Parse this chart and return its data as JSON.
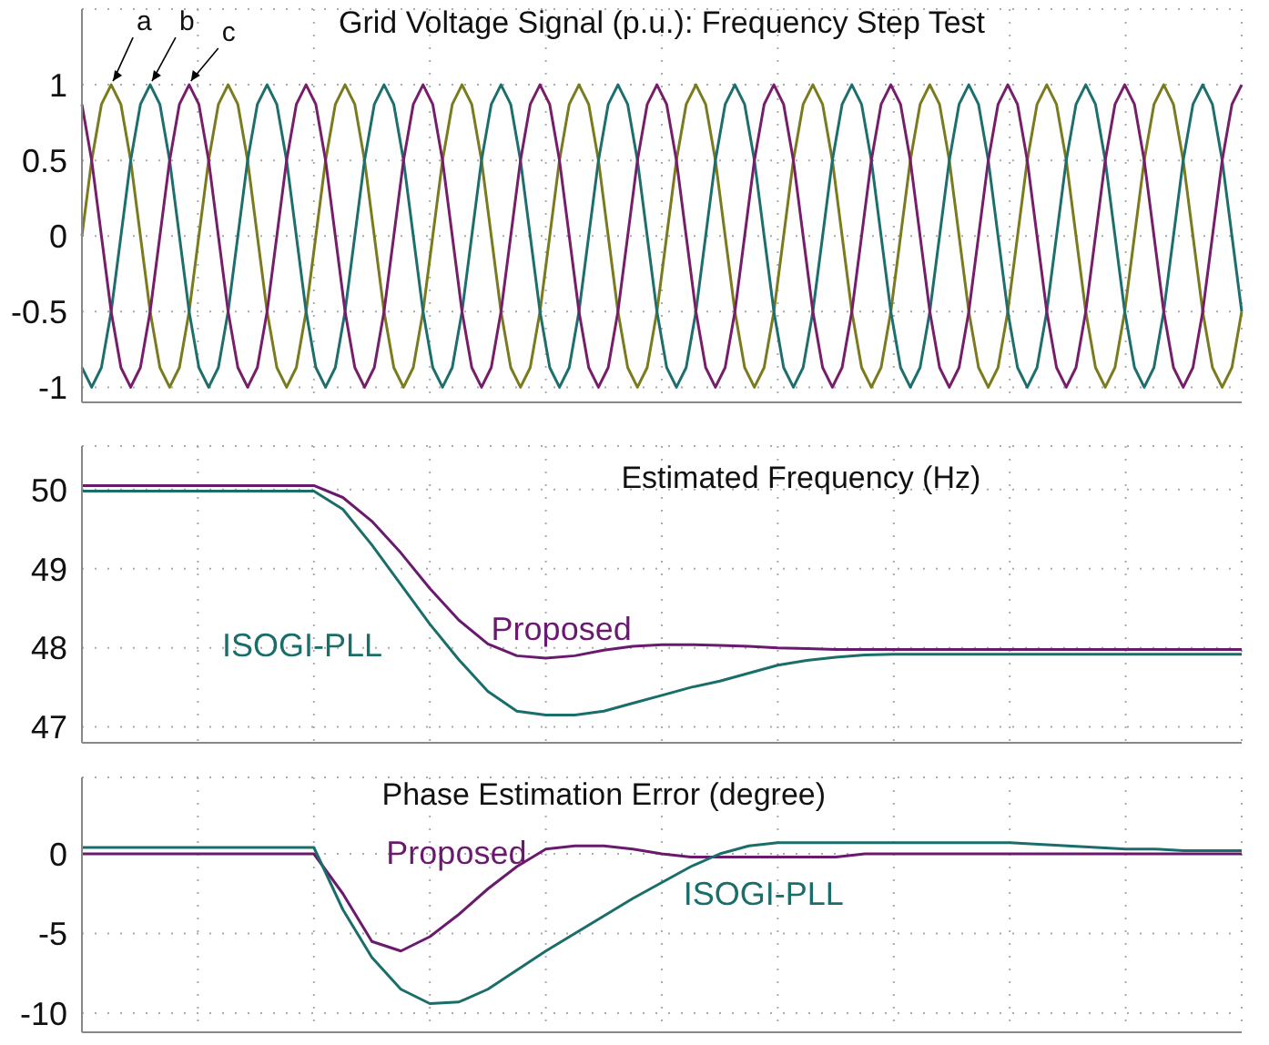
{
  "chart_data": [
    {
      "type": "line",
      "title": "Grid Voltage Signal (p.u.): Frequency Step Test",
      "categories": [
        null,
        null,
        null,
        null,
        null,
        null,
        null,
        null,
        null,
        null,
        null,
        null,
        null,
        null,
        null,
        null,
        null,
        null,
        null,
        null,
        null,
        null,
        null,
        null,
        null,
        null,
        null,
        null,
        null,
        null,
        null,
        null,
        null,
        null,
        null,
        null,
        null,
        null,
        null,
        null,
        null,
        null,
        null,
        null,
        null,
        null,
        null,
        null,
        null,
        null,
        null,
        null,
        null,
        null,
        null,
        null,
        null,
        null,
        null,
        null,
        null,
        null,
        null,
        null,
        null,
        null,
        null,
        null,
        null,
        null,
        null,
        null,
        null,
        null,
        null,
        null,
        null,
        null,
        null,
        null,
        null,
        null,
        null,
        null,
        null,
        null,
        null,
        null,
        null,
        null,
        null,
        null,
        null,
        null,
        null,
        null,
        null,
        null,
        null,
        null,
        null,
        null,
        null,
        null,
        null,
        null,
        null,
        null,
        null,
        null,
        null,
        null,
        null,
        null,
        null,
        null,
        null,
        null,
        null,
        null
      ],
      "ylim": [
        -1.1,
        1.5
      ],
      "yticks": [
        -1,
        -0.5,
        0,
        0.5,
        1
      ],
      "grid": true,
      "legend": false,
      "marker": "none",
      "line_style": "solid",
      "series": [
        {
          "name": "a",
          "color": "#7a7a1e",
          "values": [
            0,
            0.5,
            0.87,
            1,
            0.87,
            0.5,
            0,
            -0.5,
            -0.87,
            -1,
            -0.87,
            -0.5,
            0,
            0.5,
            0.87,
            1,
            0.87,
            0.5,
            0,
            -0.5,
            -0.87,
            -1,
            -0.87,
            -0.5,
            0,
            0.5,
            0.87,
            1,
            0.87,
            0.5,
            0,
            -0.5,
            -0.87,
            -1,
            -0.87,
            -0.5,
            0,
            0.5,
            0.87,
            1,
            0.87,
            0.5,
            0,
            -0.5,
            -0.87,
            -1,
            -0.87,
            -0.5,
            0,
            0.5,
            0.87,
            1,
            0.87,
            0.5,
            0,
            -0.5,
            -0.87,
            -1,
            -0.87,
            -0.5,
            0,
            0.5,
            0.87,
            1,
            0.87,
            0.5,
            0,
            -0.5,
            -0.87,
            -1,
            -0.87,
            -0.5,
            0,
            0.5,
            0.87,
            1,
            0.87,
            0.5,
            0,
            -0.5,
            -0.87,
            -1,
            -0.87,
            -0.5,
            0,
            0.5,
            0.87,
            1,
            0.87,
            0.5,
            0,
            -0.5,
            -0.87,
            -1,
            -0.87,
            -0.5,
            0,
            0.5,
            0.87,
            1,
            0.87,
            0.5,
            0,
            -0.5,
            -0.87,
            -1,
            -0.87,
            -0.5,
            0,
            0.5,
            0.87,
            1,
            0.87,
            0.5,
            0,
            -0.5,
            -0.87,
            -1,
            -0.87,
            -0.5
          ]
        },
        {
          "name": "b",
          "color": "#1e6e6e",
          "values": [
            -0.87,
            -1,
            -0.87,
            -0.5,
            0,
            0.5,
            0.87,
            1,
            0.87,
            0.5,
            0,
            -0.5,
            -0.87,
            -1,
            -0.87,
            -0.5,
            0,
            0.5,
            0.87,
            1,
            0.87,
            0.5,
            0,
            -0.5,
            -0.87,
            -1,
            -0.87,
            -0.5,
            0,
            0.5,
            0.87,
            1,
            0.87,
            0.5,
            0,
            -0.5,
            -0.87,
            -1,
            -0.87,
            -0.5,
            0,
            0.5,
            0.87,
            1,
            0.87,
            0.5,
            0,
            -0.5,
            -0.87,
            -1,
            -0.87,
            -0.5,
            0,
            0.5,
            0.87,
            1,
            0.87,
            0.5,
            0,
            -0.5,
            -0.87,
            -1,
            -0.87,
            -0.5,
            0,
            0.5,
            0.87,
            1,
            0.87,
            0.5,
            0,
            -0.5,
            -0.87,
            -1,
            -0.87,
            -0.5,
            0,
            0.5,
            0.87,
            1,
            0.87,
            0.5,
            0,
            -0.5,
            -0.87,
            -1,
            -0.87,
            -0.5,
            0,
            0.5,
            0.87,
            1,
            0.87,
            0.5,
            0,
            -0.5,
            -0.87,
            -1,
            -0.87,
            -0.5,
            0,
            0.5,
            0.87,
            1,
            0.87,
            0.5,
            0,
            -0.5,
            -0.87,
            -1,
            -0.87,
            -0.5,
            0,
            0.5,
            0.87,
            1,
            0.87,
            0.5,
            0,
            -0.5
          ]
        },
        {
          "name": "c",
          "color": "#761e6a",
          "values": [
            0.87,
            0.5,
            0,
            -0.5,
            -0.87,
            -1,
            -0.87,
            -0.5,
            0,
            0.5,
            0.87,
            1,
            0.87,
            0.5,
            0,
            -0.5,
            -0.87,
            -1,
            -0.87,
            -0.5,
            0,
            0.5,
            0.87,
            1,
            0.87,
            0.5,
            0,
            -0.5,
            -0.87,
            -1,
            -0.87,
            -0.5,
            0,
            0.5,
            0.87,
            1,
            0.87,
            0.5,
            0,
            -0.5,
            -0.87,
            -1,
            -0.87,
            -0.5,
            0,
            0.5,
            0.87,
            1,
            0.87,
            0.5,
            0,
            -0.5,
            -0.87,
            -1,
            -0.87,
            -0.5,
            0,
            0.5,
            0.87,
            1,
            0.87,
            0.5,
            0,
            -0.5,
            -0.87,
            -1,
            -0.87,
            -0.5,
            0,
            0.5,
            0.87,
            1,
            0.87,
            0.5,
            0,
            -0.5,
            -0.87,
            -1,
            -0.87,
            -0.5,
            0,
            0.5,
            0.87,
            1,
            0.87,
            0.5,
            0,
            -0.5,
            -0.87,
            -1,
            -0.87,
            -0.5,
            0,
            0.5,
            0.87,
            1,
            0.87,
            0.5,
            0,
            -0.5,
            -0.87,
            -1,
            -0.87,
            -0.5,
            0,
            0.5,
            0.87,
            1,
            0.87,
            0.5,
            0,
            -0.5,
            -0.87,
            -1,
            -0.87,
            -0.5,
            0,
            0.5,
            0.87,
            1
          ]
        }
      ]
    },
    {
      "type": "line",
      "title": "Estimated Frequency (Hz)",
      "categories": [
        null,
        null,
        null,
        null,
        null,
        null,
        null,
        null,
        null,
        null,
        null,
        null,
        null,
        null,
        null,
        null,
        null,
        null,
        null,
        null,
        null,
        null,
        null,
        null,
        null,
        null,
        null,
        null,
        null,
        null,
        null,
        null,
        null,
        null,
        null,
        null,
        null,
        null,
        null,
        null,
        null
      ],
      "ylim": [
        46.8,
        50.55
      ],
      "yticks": [
        47,
        48,
        49,
        50
      ],
      "grid": true,
      "legend": false,
      "marker": "none",
      "line_style": "solid",
      "series": [
        {
          "name": "Proposed",
          "color": "#6a1a6e",
          "values": [
            50.05,
            50.05,
            50.05,
            50.05,
            50.05,
            50.05,
            50.05,
            50.05,
            50.05,
            49.9,
            49.6,
            49.2,
            48.75,
            48.35,
            48.05,
            47.9,
            47.87,
            47.9,
            47.97,
            48.02,
            48.04,
            48.04,
            48.03,
            48.02,
            48.0,
            47.99,
            47.98,
            47.98,
            47.98,
            47.98,
            47.98,
            47.98,
            47.98,
            47.98,
            47.98,
            47.98,
            47.98,
            47.98,
            47.98,
            47.98,
            47.98
          ]
        },
        {
          "name": "ISOGI-PLL",
          "color": "#1a6e6a",
          "values": [
            49.98,
            49.98,
            49.98,
            49.98,
            49.98,
            49.98,
            49.98,
            49.98,
            49.98,
            49.75,
            49.3,
            48.8,
            48.3,
            47.85,
            47.45,
            47.2,
            47.15,
            47.15,
            47.2,
            47.3,
            47.4,
            47.5,
            47.58,
            47.68,
            47.78,
            47.84,
            47.88,
            47.91,
            47.92,
            47.92,
            47.92,
            47.92,
            47.92,
            47.92,
            47.92,
            47.92,
            47.92,
            47.92,
            47.92,
            47.92,
            47.92
          ]
        }
      ]
    },
    {
      "type": "line",
      "title": "Phase Estimation Error (degree)",
      "categories": [
        null,
        null,
        null,
        null,
        null,
        null,
        null,
        null,
        null,
        null,
        null,
        null,
        null,
        null,
        null,
        null,
        null,
        null,
        null,
        null,
        null,
        null,
        null,
        null,
        null,
        null,
        null,
        null,
        null,
        null,
        null,
        null,
        null,
        null,
        null,
        null,
        null,
        null,
        null,
        null,
        null
      ],
      "ylim": [
        -11.2,
        4.8
      ],
      "yticks": [
        -10,
        -5,
        0
      ],
      "grid": true,
      "legend": false,
      "marker": "none",
      "line_style": "solid",
      "series": [
        {
          "name": "Proposed",
          "color": "#6a1a6e",
          "values": [
            0,
            0,
            0,
            0,
            0,
            0,
            0,
            0,
            0,
            -2.5,
            -5.5,
            -6.1,
            -5.2,
            -3.8,
            -2.2,
            -0.8,
            0.3,
            0.5,
            0.5,
            0.3,
            0,
            -0.2,
            -0.2,
            -0.2,
            -0.2,
            -0.2,
            -0.2,
            0,
            0,
            0,
            0,
            0,
            0,
            0,
            0,
            0,
            0,
            0,
            0,
            0,
            0
          ]
        },
        {
          "name": "ISOGI-PLL",
          "color": "#1a6e6a",
          "values": [
            0.4,
            0.4,
            0.4,
            0.4,
            0.4,
            0.4,
            0.4,
            0.4,
            0.4,
            -3.5,
            -6.5,
            -8.5,
            -9.4,
            -9.3,
            -8.5,
            -7.3,
            -6.1,
            -5,
            -3.9,
            -2.8,
            -1.8,
            -0.8,
            0,
            0.5,
            0.7,
            0.7,
            0.7,
            0.7,
            0.7,
            0.7,
            0.7,
            0.7,
            0.7,
            0.6,
            0.5,
            0.4,
            0.3,
            0.3,
            0.2,
            0.2,
            0.2
          ]
        }
      ]
    }
  ]
}
